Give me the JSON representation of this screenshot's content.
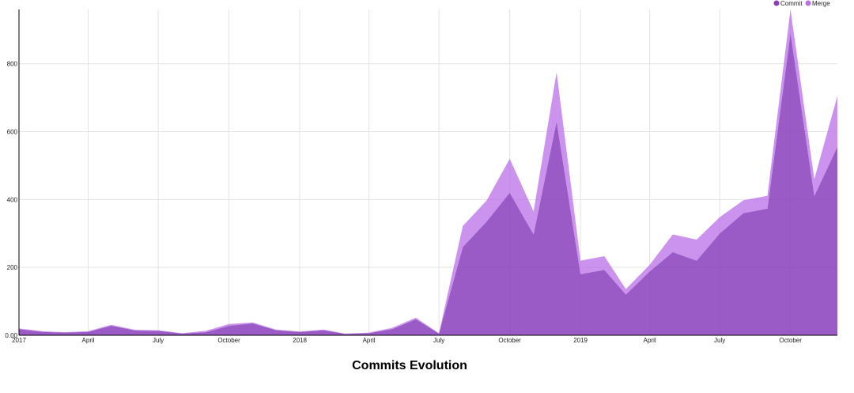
{
  "chart_data": {
    "type": "area",
    "stacked": true,
    "title": "Commits Evolution",
    "xlabel": "",
    "ylabel": "",
    "ylim": [
      0,
      960
    ],
    "x_range": [
      "2017-01-01",
      "2019-12-01"
    ],
    "grid": true,
    "legend_position": "top-right",
    "y_ticks": [
      "0.00",
      "200",
      "400",
      "600",
      "800"
    ],
    "y_tick_values": [
      0,
      200,
      400,
      600,
      800
    ],
    "x_ticks": [
      {
        "date": "2017-01-01",
        "label": "2017"
      },
      {
        "date": "2017-04-01",
        "label": "April"
      },
      {
        "date": "2017-07-01",
        "label": "July"
      },
      {
        "date": "2017-10-01",
        "label": "October"
      },
      {
        "date": "2018-01-01",
        "label": "2018"
      },
      {
        "date": "2018-04-01",
        "label": "April"
      },
      {
        "date": "2018-07-01",
        "label": "July"
      },
      {
        "date": "2018-10-01",
        "label": "October"
      },
      {
        "date": "2019-01-01",
        "label": "2019"
      },
      {
        "date": "2019-04-01",
        "label": "April"
      },
      {
        "date": "2019-07-01",
        "label": "July"
      },
      {
        "date": "2019-10-01",
        "label": "October"
      }
    ],
    "x": [
      "2017-01-01",
      "2017-02-01",
      "2017-03-01",
      "2017-04-01",
      "2017-05-01",
      "2017-06-01",
      "2017-07-01",
      "2017-08-01",
      "2017-09-01",
      "2017-10-01",
      "2017-11-01",
      "2017-12-01",
      "2018-01-01",
      "2018-02-01",
      "2018-03-01",
      "2018-04-01",
      "2018-05-01",
      "2018-06-01",
      "2018-07-01",
      "2018-08-01",
      "2018-09-01",
      "2018-10-01",
      "2018-11-01",
      "2018-12-01",
      "2019-01-01",
      "2019-02-01",
      "2019-03-01",
      "2019-04-01",
      "2019-05-01",
      "2019-06-01",
      "2019-07-01",
      "2019-08-01",
      "2019-09-01",
      "2019-10-01",
      "2019-11-01",
      "2019-12-01"
    ],
    "series": [
      {
        "name": "Commit",
        "color": "#8a3ebd",
        "values": [
          18,
          10,
          8,
          10,
          28,
          14,
          13,
          5,
          9,
          28,
          35,
          15,
          10,
          15,
          4,
          6,
          18,
          47,
          5,
          260,
          335,
          420,
          297,
          630,
          180,
          193,
          120,
          188,
          245,
          220,
          300,
          360,
          373,
          890,
          410,
          555
        ]
      },
      {
        "name": "Merge",
        "color": "#b96fe8",
        "values": [
          2,
          2,
          1,
          2,
          3,
          2,
          2,
          1,
          4,
          5,
          3,
          2,
          1,
          2,
          1,
          2,
          4,
          5,
          1,
          62,
          62,
          100,
          68,
          145,
          40,
          40,
          16,
          20,
          52,
          62,
          48,
          38,
          38,
          70,
          50,
          150
        ]
      }
    ]
  }
}
